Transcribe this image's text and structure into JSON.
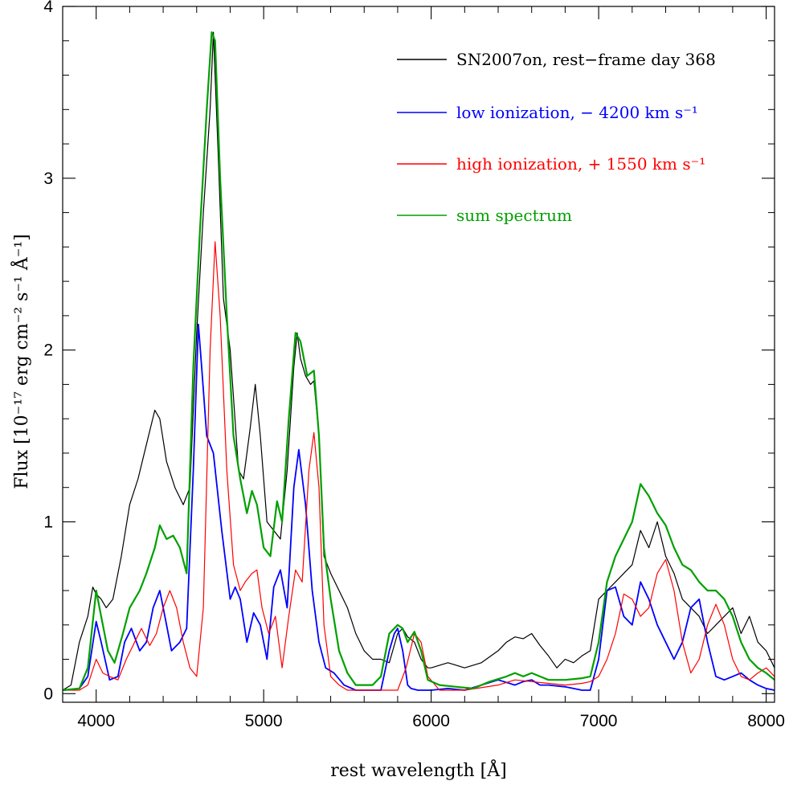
{
  "chart_data": {
    "type": "line",
    "xlabel": "rest wavelength [Å]",
    "ylabel": "Flux [10⁻¹⁷ erg cm⁻² s⁻¹ Å⁻¹]",
    "xlim": [
      3800,
      8050
    ],
    "ylim": [
      -0.05,
      4.0
    ],
    "x_ticks": [
      4000,
      5000,
      6000,
      7000,
      8000
    ],
    "x_tick_labels": [
      "4000",
      "5000",
      "6000",
      "7000",
      "8000"
    ],
    "y_ticks": [
      0,
      1,
      2,
      3,
      4
    ],
    "y_tick_labels": [
      "0",
      "1",
      "2",
      "3",
      "4"
    ],
    "legend_position": "top-right",
    "series": [
      {
        "name": "SN2007on, rest−frame day 368",
        "color": "#000000",
        "x": [
          3800,
          3850,
          3900,
          3950,
          3980,
          4000,
          4030,
          4060,
          4100,
          4150,
          4200,
          4250,
          4300,
          4350,
          4380,
          4420,
          4470,
          4520,
          4560,
          4600,
          4640,
          4680,
          4700,
          4730,
          4760,
          4800,
          4850,
          4880,
          4920,
          4950,
          4980,
          5020,
          5060,
          5100,
          5140,
          5180,
          5200,
          5220,
          5250,
          5280,
          5300,
          5330,
          5360,
          5400,
          5450,
          5500,
          5550,
          5600,
          5650,
          5700,
          5750,
          5800,
          5830,
          5860,
          5900,
          5940,
          5980,
          6000,
          6100,
          6200,
          6300,
          6400,
          6450,
          6500,
          6550,
          6600,
          6650,
          6700,
          6750,
          6800,
          6850,
          6900,
          6950,
          7000,
          7050,
          7100,
          7150,
          7200,
          7250,
          7300,
          7350,
          7400,
          7450,
          7500,
          7550,
          7600,
          7650,
          7700,
          7750,
          7800,
          7850,
          7900,
          7950,
          8000,
          8050
        ],
        "y": [
          0.02,
          0.05,
          0.3,
          0.45,
          0.62,
          0.58,
          0.55,
          0.5,
          0.55,
          0.8,
          1.1,
          1.25,
          1.45,
          1.65,
          1.6,
          1.35,
          1.2,
          1.1,
          1.2,
          2.1,
          2.8,
          3.4,
          3.85,
          3.1,
          2.3,
          2.0,
          1.3,
          1.25,
          1.55,
          1.8,
          1.5,
          1.0,
          0.95,
          0.9,
          1.3,
          1.9,
          2.1,
          1.95,
          1.85,
          1.8,
          1.82,
          1.5,
          0.8,
          0.7,
          0.6,
          0.5,
          0.35,
          0.25,
          0.2,
          0.2,
          0.18,
          0.35,
          0.38,
          0.33,
          0.3,
          0.2,
          0.15,
          0.15,
          0.18,
          0.15,
          0.18,
          0.25,
          0.3,
          0.33,
          0.32,
          0.35,
          0.28,
          0.22,
          0.15,
          0.2,
          0.18,
          0.22,
          0.25,
          0.55,
          0.6,
          0.65,
          0.7,
          0.75,
          0.95,
          0.85,
          1.0,
          0.8,
          0.7,
          0.55,
          0.5,
          0.45,
          0.35,
          0.4,
          0.45,
          0.5,
          0.35,
          0.45,
          0.3,
          0.25,
          0.15
        ]
      },
      {
        "name": "low ionization, − 4200 km s⁻¹",
        "color": "#0000ff",
        "x": [
          3800,
          3900,
          3950,
          4000,
          4030,
          4080,
          4130,
          4170,
          4210,
          4260,
          4300,
          4340,
          4380,
          4420,
          4450,
          4500,
          4540,
          4580,
          4610,
          4630,
          4660,
          4700,
          4750,
          4800,
          4830,
          4860,
          4900,
          4940,
          4980,
          5020,
          5060,
          5100,
          5140,
          5180,
          5210,
          5250,
          5290,
          5330,
          5370,
          5420,
          5480,
          5550,
          5600,
          5650,
          5700,
          5750,
          5780,
          5800,
          5830,
          5860,
          5880,
          5920,
          6000,
          6100,
          6200,
          6300,
          6400,
          6500,
          6550,
          6600,
          6650,
          6700,
          6800,
          6900,
          6950,
          7000,
          7050,
          7100,
          7150,
          7200,
          7250,
          7300,
          7350,
          7400,
          7450,
          7500,
          7550,
          7600,
          7650,
          7700,
          7750,
          7800,
          7850,
          7900,
          7950,
          8000,
          8050
        ],
        "y": [
          0.02,
          0.03,
          0.1,
          0.42,
          0.3,
          0.08,
          0.1,
          0.3,
          0.38,
          0.25,
          0.3,
          0.5,
          0.6,
          0.4,
          0.25,
          0.3,
          0.38,
          1.3,
          2.15,
          1.9,
          1.5,
          1.4,
          0.95,
          0.55,
          0.62,
          0.55,
          0.3,
          0.47,
          0.4,
          0.2,
          0.62,
          0.72,
          0.5,
          1.2,
          1.42,
          1.1,
          0.6,
          0.3,
          0.15,
          0.12,
          0.05,
          0.02,
          0.02,
          0.02,
          0.02,
          0.25,
          0.35,
          0.38,
          0.25,
          0.05,
          0.03,
          0.02,
          0.02,
          0.03,
          0.02,
          0.05,
          0.08,
          0.05,
          0.07,
          0.08,
          0.05,
          0.05,
          0.04,
          0.02,
          0.02,
          0.2,
          0.6,
          0.62,
          0.45,
          0.4,
          0.65,
          0.55,
          0.4,
          0.3,
          0.2,
          0.3,
          0.5,
          0.55,
          0.3,
          0.1,
          0.08,
          0.1,
          0.12,
          0.08,
          0.05,
          0.03,
          0.02
        ]
      },
      {
        "name": "high ionization, + 1550 km s⁻¹",
        "color": "#ff0000",
        "x": [
          3800,
          3900,
          3950,
          4000,
          4040,
          4080,
          4130,
          4180,
          4230,
          4270,
          4320,
          4360,
          4400,
          4440,
          4480,
          4520,
          4560,
          4600,
          4640,
          4680,
          4710,
          4740,
          4780,
          4820,
          4860,
          4890,
          4930,
          4960,
          4990,
          5030,
          5070,
          5110,
          5150,
          5190,
          5230,
          5270,
          5300,
          5330,
          5360,
          5400,
          5450,
          5500,
          5600,
          5700,
          5800,
          5850,
          5900,
          5940,
          5980,
          6050,
          6200,
          6400,
          6500,
          6600,
          6700,
          6800,
          6900,
          6950,
          7000,
          7050,
          7100,
          7150,
          7200,
          7250,
          7300,
          7350,
          7400,
          7450,
          7500,
          7550,
          7600,
          7650,
          7700,
          7750,
          7800,
          7850,
          7900,
          7950,
          8000,
          8050
        ],
        "y": [
          0.02,
          0.02,
          0.05,
          0.2,
          0.12,
          0.1,
          0.08,
          0.2,
          0.3,
          0.38,
          0.28,
          0.35,
          0.5,
          0.6,
          0.5,
          0.3,
          0.15,
          0.1,
          0.5,
          2.0,
          2.63,
          2.2,
          1.3,
          0.75,
          0.6,
          0.65,
          0.7,
          0.72,
          0.5,
          0.35,
          0.45,
          0.15,
          0.45,
          0.72,
          0.65,
          1.3,
          1.52,
          1.2,
          0.4,
          0.1,
          0.05,
          0.02,
          0.02,
          0.02,
          0.02,
          0.15,
          0.35,
          0.3,
          0.1,
          0.02,
          0.02,
          0.05,
          0.08,
          0.07,
          0.06,
          0.05,
          0.06,
          0.07,
          0.1,
          0.2,
          0.35,
          0.58,
          0.55,
          0.45,
          0.5,
          0.7,
          0.78,
          0.6,
          0.3,
          0.12,
          0.2,
          0.4,
          0.52,
          0.4,
          0.2,
          0.1,
          0.08,
          0.12,
          0.15,
          0.1
        ]
      },
      {
        "name": "sum spectrum",
        "color": "#00a000",
        "x": [
          3800,
          3900,
          3950,
          4000,
          4030,
          4070,
          4110,
          4160,
          4200,
          4260,
          4300,
          4350,
          4380,
          4420,
          4460,
          4500,
          4540,
          4580,
          4620,
          4660,
          4690,
          4710,
          4740,
          4780,
          4820,
          4860,
          4900,
          4930,
          4960,
          5000,
          5040,
          5080,
          5110,
          5150,
          5190,
          5220,
          5260,
          5300,
          5330,
          5360,
          5400,
          5450,
          5500,
          5550,
          5600,
          5650,
          5700,
          5750,
          5800,
          5830,
          5860,
          5900,
          5940,
          5980,
          6050,
          6150,
          6250,
          6350,
          6450,
          6500,
          6550,
          6600,
          6650,
          6700,
          6800,
          6900,
          6950,
          7000,
          7050,
          7100,
          7150,
          7200,
          7250,
          7300,
          7350,
          7400,
          7450,
          7500,
          7550,
          7600,
          7650,
          7700,
          7750,
          7800,
          7850,
          7900,
          7950,
          8000,
          8050
        ],
        "y": [
          0.02,
          0.03,
          0.15,
          0.6,
          0.45,
          0.25,
          0.18,
          0.35,
          0.5,
          0.6,
          0.7,
          0.85,
          0.98,
          0.9,
          0.92,
          0.85,
          0.7,
          1.9,
          2.7,
          3.4,
          3.85,
          3.8,
          3.0,
          2.2,
          1.5,
          1.25,
          1.05,
          1.18,
          1.1,
          0.85,
          0.8,
          1.12,
          1.0,
          1.6,
          2.1,
          2.05,
          1.85,
          1.88,
          1.5,
          0.85,
          0.55,
          0.25,
          0.12,
          0.05,
          0.05,
          0.05,
          0.1,
          0.35,
          0.4,
          0.38,
          0.3,
          0.36,
          0.25,
          0.08,
          0.05,
          0.04,
          0.03,
          0.07,
          0.1,
          0.12,
          0.1,
          0.12,
          0.1,
          0.08,
          0.08,
          0.09,
          0.1,
          0.3,
          0.65,
          0.8,
          0.9,
          1.0,
          1.22,
          1.15,
          1.05,
          0.98,
          0.85,
          0.75,
          0.72,
          0.65,
          0.6,
          0.6,
          0.55,
          0.45,
          0.3,
          0.2,
          0.15,
          0.12,
          0.08
        ]
      }
    ]
  }
}
